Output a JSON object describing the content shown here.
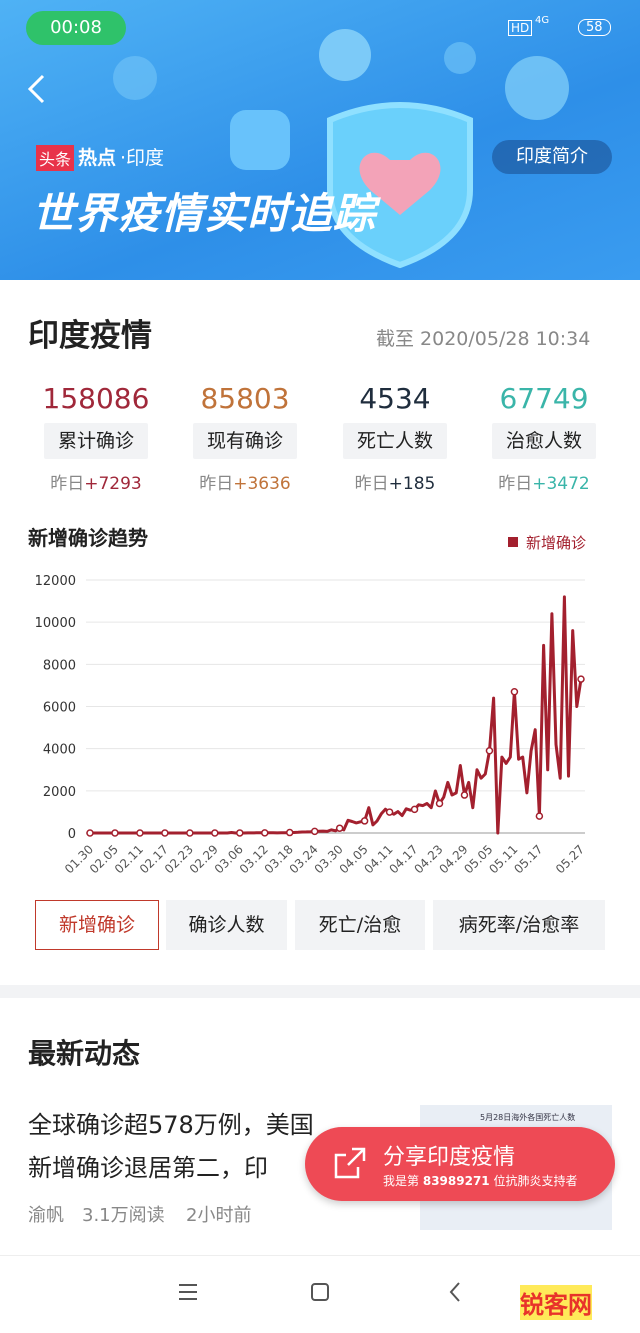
{
  "status": {
    "time": "00:08",
    "hd": "HD",
    "network": "4G",
    "battery": "58"
  },
  "banner": {
    "tag": "头条",
    "hot": "热点",
    "place": "·印度",
    "title": "世界疫情实时追踪",
    "intro": "印度简介"
  },
  "header": {
    "title": "印度疫情",
    "updated": "截至 2020/05/28 10:34"
  },
  "stats": [
    {
      "value": 158086,
      "label": "累计确诊",
      "prev": "昨日",
      "change": "+7293",
      "color": "#a0283a"
    },
    {
      "value": 85803,
      "label": "现有确诊",
      "prev": "昨日",
      "change": "+3636",
      "color": "#c0733a"
    },
    {
      "value": 4534,
      "label": "死亡人数",
      "prev": "昨日",
      "change": "+185",
      "color": "#1f2d3d"
    },
    {
      "value": 67749,
      "label": "治愈人数",
      "prev": "昨日",
      "change": "+3472",
      "color": "#3ab5a9"
    }
  ],
  "chart_data": {
    "type": "line",
    "title": "新增确诊趋势",
    "categories": [
      "01.30",
      null,
      null,
      null,
      null,
      null,
      "02.05",
      null,
      null,
      null,
      null,
      null,
      "02.11",
      null,
      null,
      null,
      null,
      null,
      "02.17",
      null,
      null,
      null,
      null,
      null,
      "02.23",
      null,
      null,
      null,
      null,
      null,
      "02.29",
      null,
      null,
      null,
      null,
      null,
      "03.06",
      null,
      null,
      null,
      null,
      null,
      "03.12",
      null,
      null,
      null,
      null,
      null,
      "03.18",
      null,
      null,
      null,
      null,
      null,
      "03.24",
      null,
      null,
      null,
      null,
      null,
      "03.30",
      null,
      null,
      null,
      null,
      null,
      "04.05",
      null,
      null,
      null,
      null,
      null,
      "04.11",
      null,
      null,
      null,
      null,
      null,
      "04.17",
      null,
      null,
      null,
      null,
      null,
      "04.23",
      null,
      null,
      null,
      null,
      null,
      "04.29",
      null,
      null,
      null,
      null,
      null,
      "05.05",
      null,
      null,
      null,
      null,
      null,
      "05.11",
      null,
      null,
      null,
      null,
      null,
      "05.17",
      null,
      null,
      null,
      null,
      null,
      null,
      null,
      null,
      null,
      "05.27"
    ],
    "series": [
      {
        "name": "新增确诊",
        "color": "#a3202e",
        "values": [
          1,
          0,
          1,
          0,
          0,
          0,
          0,
          0,
          0,
          0,
          0,
          0,
          0,
          0,
          0,
          0,
          0,
          0,
          0,
          0,
          0,
          0,
          0,
          0,
          0,
          0,
          0,
          0,
          0,
          0,
          0,
          0,
          0,
          2,
          22,
          1,
          2,
          1,
          3,
          5,
          9,
          13,
          6,
          11,
          10,
          6,
          8,
          15,
          22,
          26,
          35,
          49,
          50,
          64,
          77,
          87,
          88,
          75,
          149,
          106,
          227,
          146,
          601,
          545,
          478,
          529,
          573,
          1202,
          384,
          572,
          910,
          1130,
          993,
          890,
          1014,
          826,
          1149,
          1082,
          1120,
          1337,
          1300,
          1400,
          1200,
          1990,
          1400,
          1700,
          2400,
          1800,
          1900,
          3200,
          1800,
          2400,
          1200,
          3000,
          2600,
          2800,
          3900,
          6400,
          0,
          3600,
          3300,
          3600,
          6700,
          3500,
          3600,
          1900,
          3900,
          4900,
          800,
          8900,
          3000,
          10400,
          4200,
          2600,
          11200,
          2700,
          9600,
          6000,
          7300
        ]
      }
    ],
    "ylim": [
      0,
      12000
    ],
    "yticks": [
      0,
      2000,
      4000,
      6000,
      8000,
      10000,
      12000
    ],
    "grid": true,
    "legend": "top-right"
  },
  "tabs": [
    "新增确诊",
    "确诊人数",
    "死亡/治愈",
    "病死率/治愈率"
  ],
  "news": {
    "title": "最新动态",
    "headline": [
      "全球确诊超578万例，美国",
      "新增确诊退居第二，印"
    ],
    "author": "渝帆",
    "reads": "3.1万阅读",
    "time": "2小时前",
    "thumb": "5月28日海外各国死亡人数"
  },
  "share": {
    "title": "分享印度疫情",
    "pre": "我是第",
    "rank": "83989271",
    "post": "位抗肺炎支持者"
  },
  "watermark": "锐客网"
}
